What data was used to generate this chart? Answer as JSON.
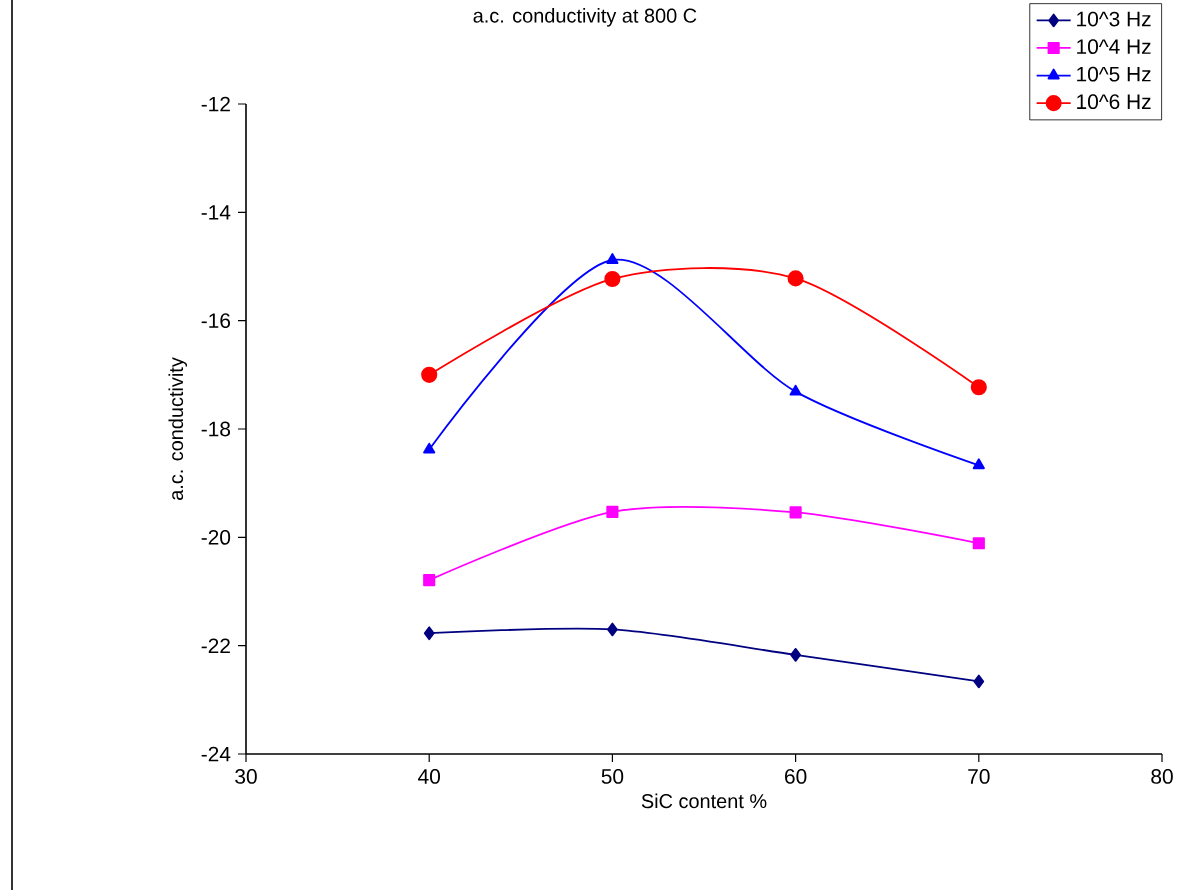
{
  "chart_data": {
    "type": "line",
    "title": "a.c. conductivity at 800 C",
    "xlabel": "SiC content %",
    "ylabel": "a.c. conductivity",
    "x": [
      40,
      50,
      60,
      70
    ],
    "series": [
      {
        "name": "10^3 Hz",
        "color": "#000080",
        "marker": "diamond",
        "values": [
          -21.77,
          -21.7,
          -22.17,
          -22.66
        ]
      },
      {
        "name": "10^4 Hz",
        "color": "#ff00ff",
        "marker": "square",
        "values": [
          -20.79,
          -19.53,
          -19.54,
          -20.11
        ]
      },
      {
        "name": "10^5 Hz",
        "color": "#0000ff",
        "marker": "triangle",
        "values": [
          -18.38,
          -14.88,
          -17.31,
          -18.67
        ]
      },
      {
        "name": "10^6 Hz",
        "color": "#ff0000",
        "marker": "circle",
        "values": [
          -17.0,
          -15.23,
          -15.22,
          -17.23
        ]
      }
    ],
    "xlim": [
      30,
      80
    ],
    "xticks": [
      30,
      40,
      50,
      60,
      70,
      80
    ],
    "ylim": [
      -24,
      -12
    ],
    "yticks": [
      -24,
      -22,
      -20,
      -18,
      -16,
      -14,
      -12
    ],
    "grid": false,
    "legend": "top right",
    "line_style": "solid"
  }
}
